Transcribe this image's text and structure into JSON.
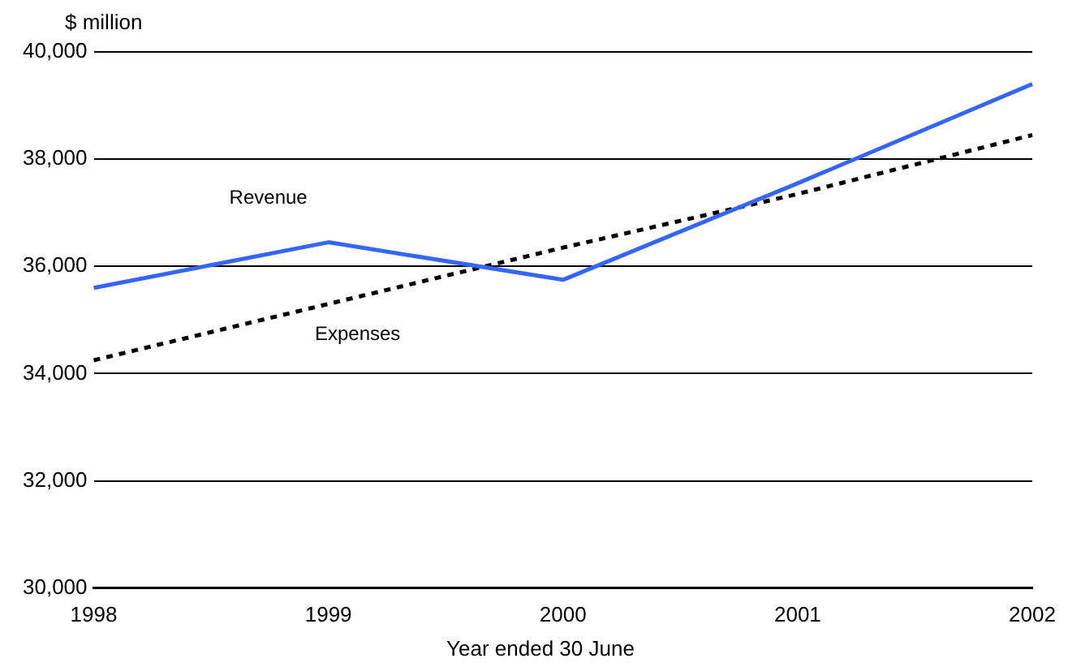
{
  "chart_data": {
    "type": "line",
    "ylabel": "$ million",
    "xlabel": "Year ended 30 June",
    "categories": [
      "1998",
      "1999",
      "2000",
      "2001",
      "2002"
    ],
    "series": [
      {
        "name": "Revenue",
        "color": "#3366ff",
        "line_style": "solid",
        "values": [
          35600,
          36450,
          35750,
          37550,
          39400
        ]
      },
      {
        "name": "Expenses",
        "color": "#000000",
        "line_style": "dotted",
        "values": [
          34250,
          35300,
          36350,
          37350,
          38450
        ]
      }
    ],
    "ylim": [
      30000,
      40000
    ],
    "yticks": [
      {
        "value": 30000,
        "label": "30,000"
      },
      {
        "value": 32000,
        "label": "32,000"
      },
      {
        "value": 34000,
        "label": "34,000"
      },
      {
        "value": 36000,
        "label": "36,000"
      },
      {
        "value": 38000,
        "label": "38,000"
      },
      {
        "value": 40000,
        "label": "40,000"
      }
    ],
    "grid": "y",
    "legend": false,
    "marker": "none"
  }
}
